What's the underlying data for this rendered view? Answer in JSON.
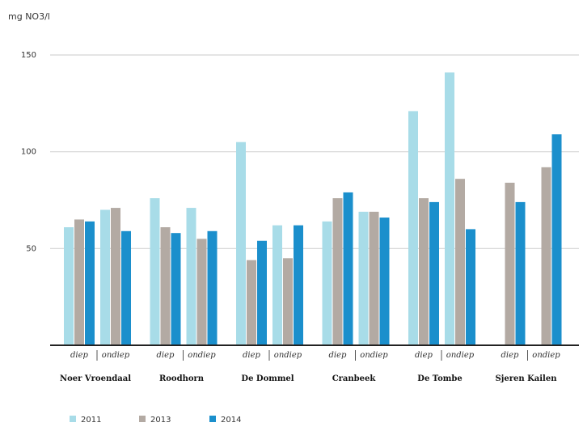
{
  "chart_data": {
    "type": "bar",
    "ylabel": "mg NO3/l",
    "ylim": [
      0,
      150
    ],
    "yticks": [
      50,
      100,
      150
    ],
    "grid": true,
    "legend_position": "bottom",
    "groups": [
      "Noer Vroendaal",
      "Roodhorn",
      "De Dommel",
      "Cranbeek",
      "De Tombe",
      "Sjeren Kailen"
    ],
    "subcategories": [
      "diep",
      "ondiep"
    ],
    "series": [
      {
        "name": "2011",
        "color": "#a8dce8",
        "values": [
          61,
          70,
          76,
          71,
          105,
          62,
          64,
          69,
          121,
          141,
          null,
          null
        ]
      },
      {
        "name": "2013",
        "color": "#b3aaa3",
        "values": [
          65,
          71,
          61,
          55,
          44,
          45,
          76,
          69,
          76,
          86,
          84,
          92
        ]
      },
      {
        "name": "2014",
        "color": "#1b8fcc",
        "values": [
          64,
          59,
          58,
          59,
          54,
          62,
          79,
          66,
          74,
          60,
          74,
          109
        ]
      }
    ]
  }
}
